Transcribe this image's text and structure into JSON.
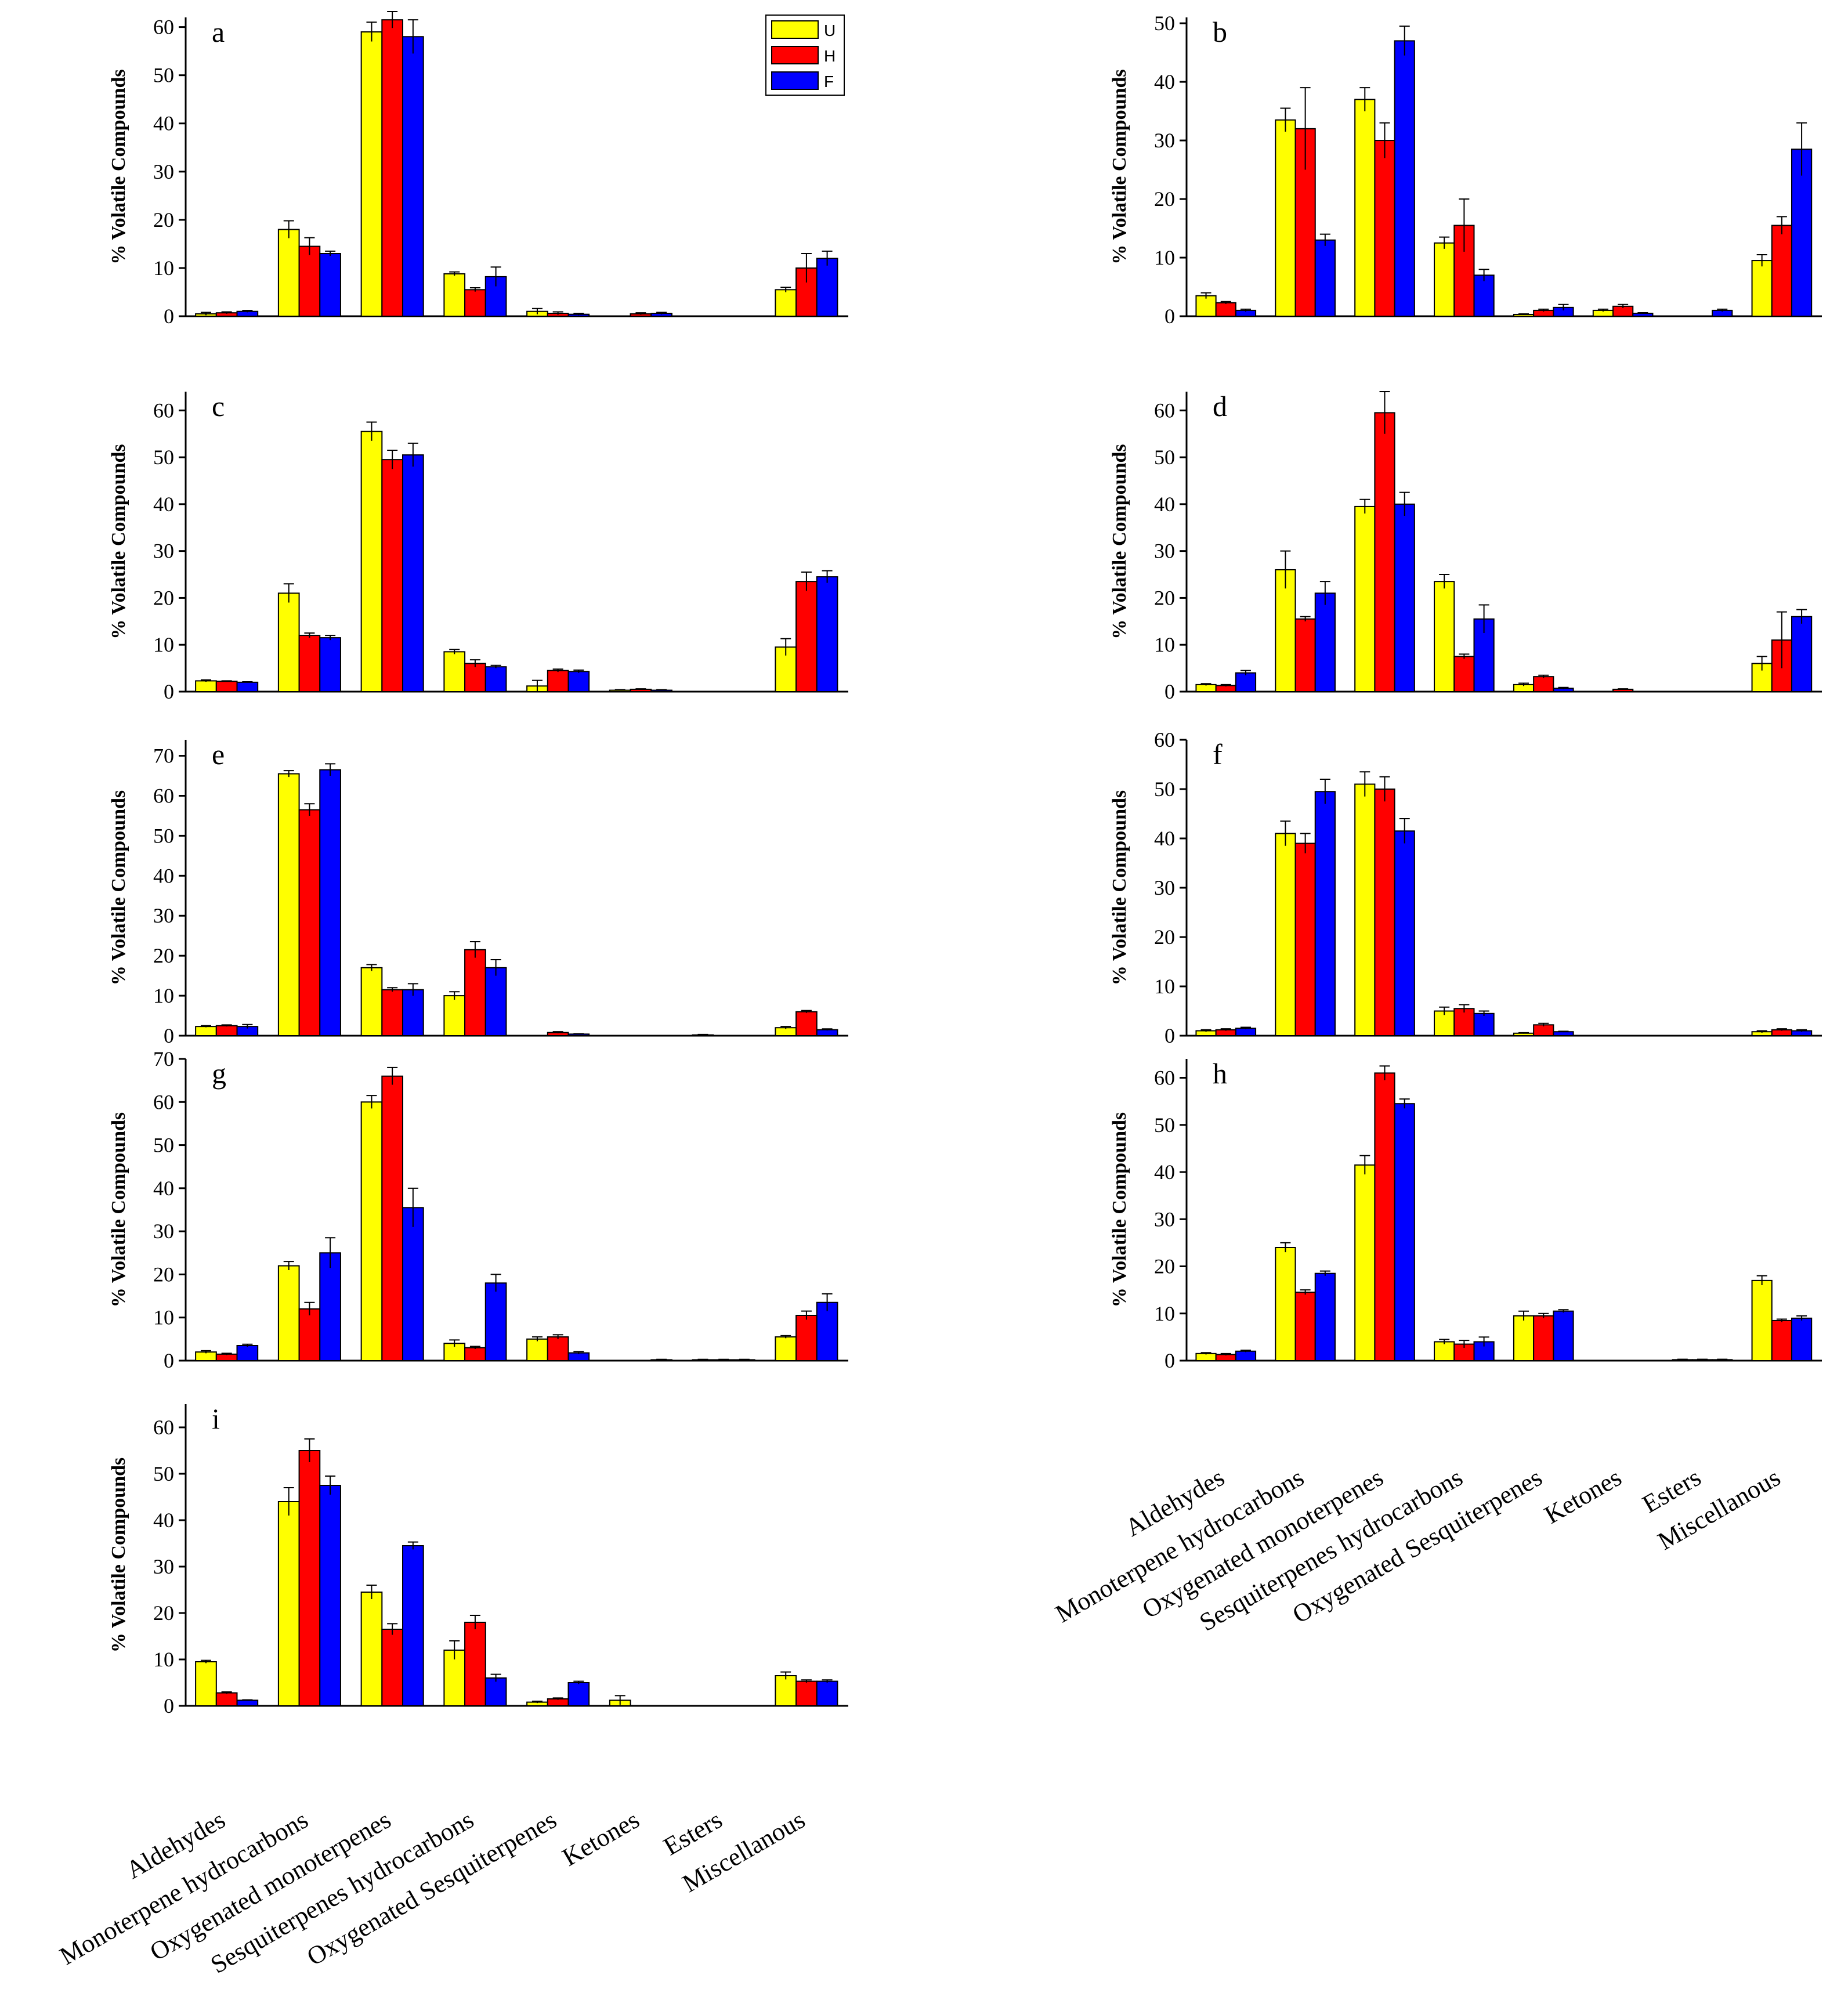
{
  "chart_data": [
    {
      "type": "bar",
      "panel": "a",
      "ylabel": "% Volatile Compounds",
      "ylim": [
        0,
        62
      ],
      "yticks": [
        0,
        10,
        20,
        30,
        40,
        50,
        60
      ],
      "categories": [
        "Aldehydes",
        "Monoterpene hydrocarbons",
        "Oxygenated monoterpenes",
        "Sesquiterpenes hydrocarbons",
        "Oxygenated Sesquiterpenes",
        "Ketones",
        "Esters",
        "Miscellanous"
      ],
      "series": [
        {
          "name": "U",
          "values": [
            0.5,
            18,
            59,
            8.8,
            1.0,
            0,
            0,
            5.5
          ],
          "errors": [
            0.3,
            1.8,
            2,
            0.4,
            0.6,
            0,
            0,
            0.5
          ]
        },
        {
          "name": "H",
          "values": [
            0.7,
            14.5,
            61.5,
            5.5,
            0.6,
            0.5,
            0,
            10
          ],
          "errors": [
            0.2,
            1.8,
            1.7,
            0.4,
            0.3,
            0.2,
            0,
            3
          ]
        },
        {
          "name": "F",
          "values": [
            1.0,
            13,
            58,
            8.2,
            0.4,
            0.6,
            0,
            12
          ],
          "errors": [
            0.2,
            0.5,
            3.5,
            2,
            0.2,
            0.2,
            0,
            1.5
          ]
        }
      ]
    },
    {
      "type": "bar",
      "panel": "b",
      "ylabel": "% Volatile Compounds",
      "ylim": [
        0,
        51
      ],
      "yticks": [
        0,
        10,
        20,
        30,
        40,
        50
      ],
      "categories": [
        "Aldehydes",
        "Monoterpene hydrocarbons",
        "Oxygenated monoterpenes",
        "Sesquiterpenes hydrocarbons",
        "Oxygenated Sesquiterpenes",
        "Ketones",
        "Esters",
        "Miscellanous"
      ],
      "series": [
        {
          "name": "U",
          "values": [
            3.5,
            33.5,
            37,
            12.5,
            0.3,
            1.0,
            0,
            9.5
          ],
          "errors": [
            0.5,
            2,
            2,
            1,
            0.1,
            0.2,
            0,
            1
          ]
        },
        {
          "name": "H",
          "values": [
            2.3,
            32,
            30,
            15.5,
            1.0,
            1.7,
            0,
            15.5
          ],
          "errors": [
            0.2,
            7,
            3,
            4.5,
            0.2,
            0.3,
            0,
            1.5
          ]
        },
        {
          "name": "F",
          "values": [
            1.0,
            13,
            47,
            7,
            1.5,
            0.5,
            1.0,
            28.5
          ],
          "errors": [
            0.2,
            1,
            2.5,
            1,
            0.5,
            0.1,
            0.2,
            4.5
          ]
        }
      ]
    },
    {
      "type": "bar",
      "panel": "c",
      "ylabel": "% Volatile Compounds",
      "ylim": [
        0,
        64
      ],
      "yticks": [
        0,
        10,
        20,
        30,
        40,
        50,
        60
      ],
      "categories": [
        "Aldehydes",
        "Monoterpene hydrocarbons",
        "Oxygenated monoterpenes",
        "Sesquiterpenes hydrocarbons",
        "Oxygenated Sesquiterpenes",
        "Ketones",
        "Esters",
        "Miscellanous"
      ],
      "series": [
        {
          "name": "U",
          "values": [
            2.3,
            21,
            55.5,
            8.5,
            1.2,
            0.3,
            0,
            9.5
          ],
          "errors": [
            0.2,
            2,
            2,
            0.5,
            1.2,
            0.1,
            0,
            1.8
          ]
        },
        {
          "name": "H",
          "values": [
            2.2,
            12,
            49.5,
            6,
            4.5,
            0.5,
            0,
            23.5
          ],
          "errors": [
            0.1,
            0.5,
            2,
            0.8,
            0.3,
            0.1,
            0,
            2
          ]
        },
        {
          "name": "F",
          "values": [
            2.0,
            11.5,
            50.5,
            5.3,
            4.3,
            0.3,
            0,
            24.5
          ],
          "errors": [
            0.1,
            0.5,
            2.5,
            0.3,
            0.3,
            0.1,
            0,
            1.3
          ]
        }
      ]
    },
    {
      "type": "bar",
      "panel": "d",
      "ylabel": "% Volatile Compounds",
      "ylim": [
        0,
        64
      ],
      "yticks": [
        0,
        10,
        20,
        30,
        40,
        50,
        60
      ],
      "categories": [
        "Aldehydes",
        "Monoterpene hydrocarbons",
        "Oxygenated monoterpenes",
        "Sesquiterpenes hydrocarbons",
        "Oxygenated Sesquiterpenes",
        "Ketones",
        "Esters",
        "Miscellanous"
      ],
      "series": [
        {
          "name": "U",
          "values": [
            1.5,
            26,
            39.5,
            23.5,
            1.5,
            0,
            0,
            6
          ],
          "errors": [
            0.2,
            4,
            1.5,
            1.5,
            0.3,
            0,
            0,
            1.5
          ]
        },
        {
          "name": "H",
          "values": [
            1.3,
            15.5,
            59.5,
            7.5,
            3.2,
            0.5,
            0,
            11
          ],
          "errors": [
            0.2,
            0.5,
            4.5,
            0.5,
            0.3,
            0.1,
            0,
            6
          ]
        },
        {
          "name": "F",
          "values": [
            4.0,
            21,
            40,
            15.5,
            0.7,
            0,
            0,
            16
          ],
          "errors": [
            0.5,
            2.5,
            2.5,
            3,
            0.2,
            0,
            0,
            1.5
          ]
        }
      ]
    },
    {
      "type": "bar",
      "panel": "e",
      "ylabel": "% Volatile Compounds",
      "ylim": [
        0,
        74
      ],
      "yticks": [
        0,
        10,
        20,
        30,
        40,
        50,
        60,
        70
      ],
      "categories": [
        "Aldehydes",
        "Monoterpene hydrocarbons",
        "Oxygenated monoterpenes",
        "Sesquiterpenes hydrocarbons",
        "Oxygenated Sesquiterpenes",
        "Ketones",
        "Esters",
        "Miscellanous"
      ],
      "series": [
        {
          "name": "U",
          "values": [
            2.3,
            65.5,
            17,
            10,
            0,
            0,
            0.2,
            2
          ],
          "errors": [
            0.2,
            0.8,
            0.8,
            1,
            0,
            0,
            0.1,
            0.3
          ]
        },
        {
          "name": "H",
          "values": [
            2.5,
            56.5,
            11.5,
            21.5,
            0.8,
            0,
            0,
            6
          ],
          "errors": [
            0.2,
            1.5,
            0.5,
            2,
            0.2,
            0,
            0,
            0.3
          ]
        },
        {
          "name": "F",
          "values": [
            2.3,
            66.5,
            11.5,
            17,
            0.4,
            0,
            0,
            1.5
          ],
          "errors": [
            0.5,
            1.5,
            1.5,
            2,
            0.1,
            0,
            0,
            0.2
          ]
        }
      ]
    },
    {
      "type": "bar",
      "panel": "f",
      "ylabel": "% Volatile Compounds",
      "ylim": [
        0,
        60
      ],
      "yticks": [
        0,
        10,
        20,
        30,
        40,
        50,
        60
      ],
      "categories": [
        "Aldehydes",
        "Monoterpene hydrocarbons",
        "Oxygenated monoterpenes",
        "Sesquiterpenes hydrocarbons",
        "Oxygenated Sesquiterpenes",
        "Ketones",
        "Esters",
        "Miscellanous"
      ],
      "series": [
        {
          "name": "U",
          "values": [
            1.0,
            41,
            51,
            5,
            0.5,
            0,
            0,
            0.8
          ],
          "errors": [
            0.2,
            2.5,
            2.5,
            0.8,
            0.1,
            0,
            0,
            0.2
          ]
        },
        {
          "name": "H",
          "values": [
            1.2,
            39,
            50,
            5.5,
            2.2,
            0,
            0,
            1.2
          ],
          "errors": [
            0.2,
            2,
            2.5,
            0.8,
            0.3,
            0,
            0,
            0.2
          ]
        },
        {
          "name": "F",
          "values": [
            1.5,
            49.5,
            41.5,
            4.5,
            0.8,
            0,
            0,
            1.0
          ],
          "errors": [
            0.2,
            2.5,
            2.5,
            0.5,
            0.1,
            0,
            0,
            0.2
          ]
        }
      ]
    },
    {
      "type": "bar",
      "panel": "g",
      "ylabel": "% Volatile Compounds",
      "ylim": [
        0,
        70
      ],
      "yticks": [
        0,
        10,
        20,
        30,
        40,
        50,
        60,
        70
      ],
      "categories": [
        "Aldehydes",
        "Monoterpene hydrocarbons",
        "Oxygenated monoterpenes",
        "Sesquiterpenes hydrocarbons",
        "Oxygenated Sesquiterpenes",
        "Ketones",
        "Esters",
        "Miscellanous"
      ],
      "series": [
        {
          "name": "U",
          "values": [
            2,
            22,
            60,
            4,
            5,
            0,
            0.2,
            5.5
          ],
          "errors": [
            0.3,
            1,
            1.5,
            0.8,
            0.5,
            0,
            0.1,
            0.3
          ]
        },
        {
          "name": "H",
          "values": [
            1.5,
            12,
            66,
            3,
            5.5,
            0,
            0.2,
            10.5
          ],
          "errors": [
            0.2,
            1.5,
            2,
            0.3,
            0.5,
            0,
            0.1,
            1
          ]
        },
        {
          "name": "F",
          "values": [
            3.5,
            25,
            35.5,
            18,
            1.8,
            0.2,
            0.2,
            13.5
          ],
          "errors": [
            0.3,
            3.5,
            4.5,
            2,
            0.3,
            0.1,
            0.1,
            2
          ]
        }
      ]
    },
    {
      "type": "bar",
      "panel": "h",
      "ylabel": "% Volatile Compounds",
      "ylim": [
        0,
        64
      ],
      "yticks": [
        0,
        10,
        20,
        30,
        40,
        50,
        60
      ],
      "categories": [
        "Aldehydes",
        "Monoterpene hydrocarbons",
        "Oxygenated monoterpenes",
        "Sesquiterpenes hydrocarbons",
        "Oxygenated Sesquiterpenes",
        "Ketones",
        "Esters",
        "Miscellanous"
      ],
      "series": [
        {
          "name": "U",
          "values": [
            1.5,
            24,
            41.5,
            4,
            9.5,
            0,
            0.2,
            17
          ],
          "errors": [
            0.2,
            1,
            2,
            0.5,
            1,
            0,
            0.1,
            1
          ]
        },
        {
          "name": "H",
          "values": [
            1.3,
            14.5,
            61,
            3.5,
            9.5,
            0,
            0.2,
            8.5
          ],
          "errors": [
            0.2,
            0.5,
            1.5,
            0.8,
            0.5,
            0,
            0.1,
            0.3
          ]
        },
        {
          "name": "F",
          "values": [
            2,
            18.5,
            54.5,
            4,
            10.5,
            0,
            0.2,
            9
          ],
          "errors": [
            0.2,
            0.5,
            1,
            1,
            0.3,
            0,
            0.1,
            0.5
          ]
        }
      ]
    },
    {
      "type": "bar",
      "panel": "i",
      "ylabel": "% Volatile Compounds",
      "ylim": [
        0,
        65
      ],
      "yticks": [
        0,
        10,
        20,
        30,
        40,
        50,
        60
      ],
      "categories": [
        "Aldehydes",
        "Monoterpene hydrocarbons",
        "Oxygenated monoterpenes",
        "Sesquiterpenes hydrocarbons",
        "Oxygenated Sesquiterpenes",
        "Ketones",
        "Esters",
        "Miscellanous"
      ],
      "series": [
        {
          "name": "U",
          "values": [
            9.5,
            44,
            24.5,
            12,
            0.8,
            1.2,
            0,
            6.5
          ],
          "errors": [
            0.3,
            3,
            1.5,
            2,
            0.2,
            1,
            0,
            0.8
          ]
        },
        {
          "name": "H",
          "values": [
            2.8,
            55,
            16.5,
            18,
            1.5,
            0,
            0,
            5.3
          ],
          "errors": [
            0.2,
            2.5,
            1.2,
            1.5,
            0.2,
            0,
            0,
            0.3
          ]
        },
        {
          "name": "F",
          "values": [
            1.2,
            47.5,
            34.5,
            6,
            5,
            0,
            0,
            5.3
          ],
          "errors": [
            0.1,
            2,
            0.8,
            0.8,
            0.3,
            0,
            0,
            0.3
          ]
        }
      ]
    }
  ],
  "legend": [
    {
      "label": "U",
      "color": "#ffff00"
    },
    {
      "label": "H",
      "color": "#ff0000"
    },
    {
      "label": "F",
      "color": "#0000ff"
    }
  ],
  "colors": {
    "U": "#ffff00",
    "H": "#ff0000",
    "F": "#0000ff"
  }
}
